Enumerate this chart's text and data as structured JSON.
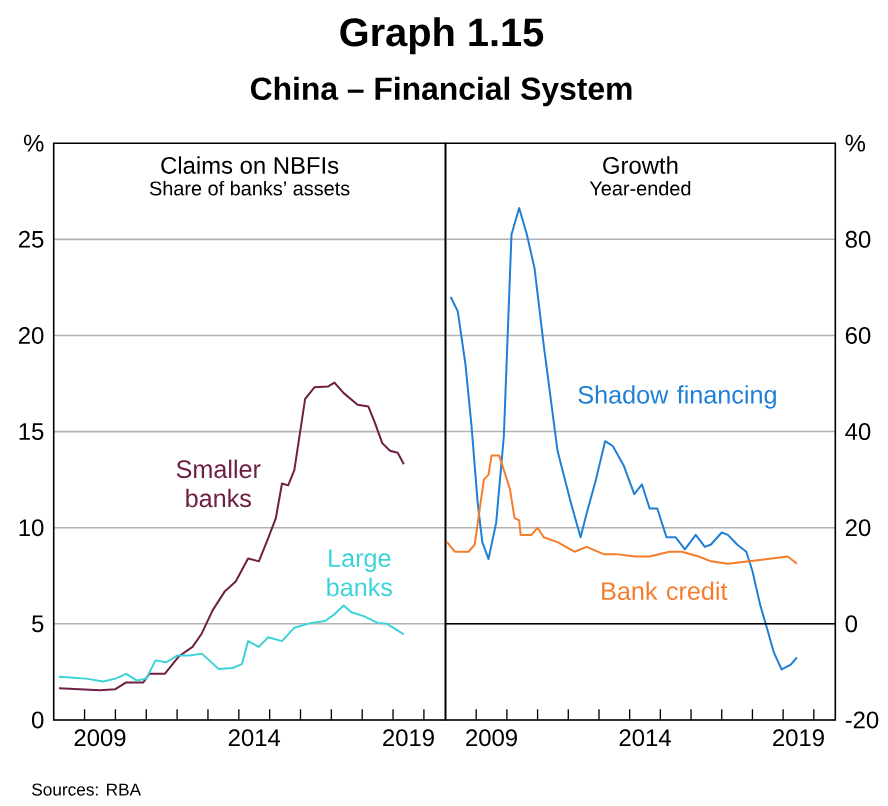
{
  "chart_data": [
    {
      "type": "other",
      "title": "Graph 1.15",
      "subtitle": "China – Financial System",
      "annotations": [
        "Sources: RBA"
      ]
    },
    {
      "type": "line",
      "title": "Claims on NBFIs",
      "subtitle": "Share of banks’ assets",
      "ylabel": "%",
      "xlim": [
        2008,
        2020.7
      ],
      "ylim": [
        0,
        30
      ],
      "xticks": [
        {
          "value": 2009,
          "label": null
        },
        {
          "value": 2010,
          "label": null
        },
        {
          "value": 2011,
          "label": null
        },
        {
          "value": 2012,
          "label": null
        },
        {
          "value": 2013,
          "label": null
        },
        {
          "value": 2014,
          "label": null
        },
        {
          "value": 2015,
          "label": null
        },
        {
          "value": 2016,
          "label": null
        },
        {
          "value": 2017,
          "label": null
        },
        {
          "value": 2018,
          "label": null
        },
        {
          "value": 2019,
          "label": null
        },
        {
          "value": 2020,
          "label": null
        },
        {
          "value": 2009.5,
          "label": "2009"
        },
        {
          "value": 2014.5,
          "label": "2014"
        },
        {
          "value": 2019.5,
          "label": "2019"
        }
      ],
      "yticks": [
        0,
        5,
        10,
        15,
        20,
        25
      ],
      "grid": "y",
      "series": [
        {
          "name": "Smaller banks",
          "color": "#6e1f43",
          "x": [
            2008.17,
            2009.5,
            2010.0,
            2010.35,
            2010.9,
            2011.1,
            2011.6,
            2012.05,
            2012.5,
            2012.8,
            2013.15,
            2013.55,
            2013.9,
            2014.3,
            2014.65,
            2014.95,
            2015.2,
            2015.4,
            2015.6,
            2015.8,
            2016.15,
            2016.45,
            2016.9,
            2017.1,
            2017.4,
            2017.85,
            2018.2,
            2018.4,
            2018.65,
            2018.9,
            2019.15,
            2019.35
          ],
          "values": [
            1.65,
            1.55,
            1.6,
            1.95,
            1.95,
            2.4,
            2.4,
            3.3,
            3.8,
            4.5,
            5.7,
            6.7,
            7.2,
            8.4,
            8.25,
            9.45,
            10.5,
            12.3,
            12.2,
            13.0,
            16.7,
            17.3,
            17.35,
            17.55,
            17.0,
            16.4,
            16.3,
            15.5,
            14.4,
            14.0,
            13.9,
            13.3
          ]
        },
        {
          "name": "Large banks",
          "color": "#3cd3d8",
          "x": [
            2008.17,
            2009.05,
            2009.6,
            2010.0,
            2010.35,
            2010.7,
            2011.0,
            2011.3,
            2011.65,
            2012.0,
            2012.4,
            2012.8,
            2013.35,
            2013.8,
            2014.1,
            2014.3,
            2014.65,
            2014.95,
            2015.4,
            2015.8,
            2016.35,
            2016.8,
            2017.1,
            2017.4,
            2017.65,
            2018.05,
            2018.5,
            2018.8,
            2019.35
          ],
          "values": [
            2.25,
            2.15,
            2.0,
            2.15,
            2.4,
            2.05,
            2.15,
            3.1,
            3.0,
            3.35,
            3.35,
            3.45,
            2.65,
            2.7,
            2.9,
            4.1,
            3.8,
            4.3,
            4.1,
            4.8,
            5.05,
            5.15,
            5.5,
            5.95,
            5.6,
            5.4,
            5.05,
            5.0,
            4.45
          ]
        }
      ]
    },
    {
      "type": "line",
      "title": "Growth",
      "subtitle": "Year-ended",
      "ylabel": "%",
      "xlim": [
        2008,
        2020.7
      ],
      "ylim": [
        -20,
        100
      ],
      "xticks": [
        {
          "value": 2009,
          "label": null
        },
        {
          "value": 2010,
          "label": null
        },
        {
          "value": 2011,
          "label": null
        },
        {
          "value": 2012,
          "label": null
        },
        {
          "value": 2013,
          "label": null
        },
        {
          "value": 2014,
          "label": null
        },
        {
          "value": 2015,
          "label": null
        },
        {
          "value": 2016,
          "label": null
        },
        {
          "value": 2017,
          "label": null
        },
        {
          "value": 2018,
          "label": null
        },
        {
          "value": 2019,
          "label": null
        },
        {
          "value": 2020,
          "label": null
        },
        {
          "value": 2009.5,
          "label": "2009"
        },
        {
          "value": 2014.5,
          "label": "2014"
        },
        {
          "value": 2019.5,
          "label": "2019"
        }
      ],
      "yticks": [
        -20,
        0,
        20,
        40,
        60,
        80
      ],
      "grid": "y",
      "ref_lines": [
        {
          "axis": "y",
          "value": 0,
          "color": "#000000"
        }
      ],
      "series": [
        {
          "name": "Shadow financing",
          "color": "#1f7fd6",
          "x": [
            2008.17,
            2008.4,
            2008.65,
            2008.85,
            2009.05,
            2009.2,
            2009.4,
            2009.65,
            2009.9,
            2010.15,
            2010.4,
            2010.65,
            2010.9,
            2011.2,
            2011.65,
            2012.05,
            2012.4,
            2012.6,
            2012.9,
            2013.2,
            2013.45,
            2013.8,
            2014.15,
            2014.4,
            2014.65,
            2014.9,
            2015.2,
            2015.5,
            2015.8,
            2016.15,
            2016.45,
            2016.65,
            2017.0,
            2017.2,
            2017.5,
            2017.8,
            2018.0,
            2018.25,
            2018.5,
            2018.7,
            2018.95,
            2019.25,
            2019.45
          ],
          "values": [
            68,
            65,
            54,
            41,
            25,
            17,
            13.5,
            21,
            39,
            81,
            86.5,
            81,
            74,
            58,
            36,
            26,
            18,
            23,
            30,
            38,
            37,
            33,
            27,
            29,
            24,
            24,
            18,
            18,
            15.5,
            18.5,
            16,
            16.5,
            19,
            18.5,
            16.5,
            15,
            11,
            4,
            -1.5,
            -6,
            -9.5,
            -8.5,
            -7
          ]
        },
        {
          "name": "Bank credit",
          "color": "#f57c2b",
          "x": [
            2008.05,
            2008.3,
            2008.75,
            2008.95,
            2009.25,
            2009.4,
            2009.5,
            2009.75,
            2010.1,
            2010.25,
            2010.4,
            2010.45,
            2010.8,
            2011.0,
            2011.2,
            2011.65,
            2012.2,
            2012.6,
            2013.15,
            2013.55,
            2014.2,
            2014.65,
            2015.3,
            2015.7,
            2016.25,
            2016.65,
            2017.2,
            2017.85,
            2018.5,
            2019.15,
            2019.45
          ],
          "values": [
            17,
            15,
            15,
            16.5,
            30,
            31,
            35,
            35,
            28,
            22,
            21.5,
            18.5,
            18.5,
            20,
            18,
            17,
            15,
            16,
            14.5,
            14.5,
            14,
            14,
            15,
            15,
            14,
            13,
            12.5,
            13,
            13.5,
            14,
            12.5
          ]
        }
      ]
    }
  ]
}
